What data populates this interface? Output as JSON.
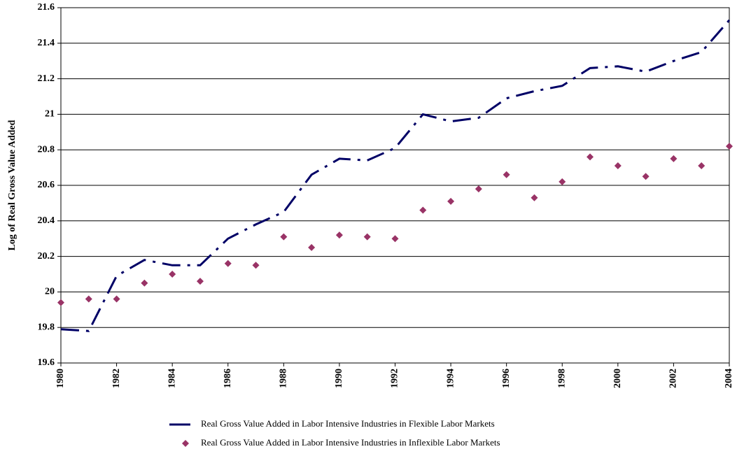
{
  "chart_data": {
    "type": "line",
    "y_label": "Log of Real Gross Value Added",
    "x": [
      1980,
      1981,
      1982,
      1983,
      1984,
      1985,
      1986,
      1987,
      1988,
      1989,
      1990,
      1991,
      1992,
      1993,
      1994,
      1995,
      1996,
      1997,
      1998,
      1999,
      2000,
      2001,
      2002,
      2003,
      2004
    ],
    "series": [
      {
        "name": "Real Gross Value Added in Labor Intensive Industries in Flexible Labor Markets",
        "color": "#000066",
        "mode": "line",
        "values": [
          19.79,
          19.78,
          20.09,
          20.18,
          20.15,
          20.15,
          20.3,
          20.38,
          20.45,
          20.66,
          20.75,
          20.74,
          20.81,
          21.0,
          20.96,
          20.98,
          21.09,
          21.13,
          21.16,
          21.26,
          21.27,
          21.24,
          21.3,
          21.35,
          21.53
        ]
      },
      {
        "name": "Real Gross Value Added in Labor Intensive Industries in Inflexible Labor Markets",
        "color": "#993366",
        "mode": "marker",
        "values": [
          19.94,
          19.96,
          19.96,
          20.05,
          20.1,
          20.06,
          20.16,
          20.15,
          20.31,
          20.25,
          20.32,
          20.31,
          20.3,
          20.46,
          20.51,
          20.58,
          20.66,
          20.53,
          20.62,
          20.76,
          20.71,
          20.65,
          20.75,
          20.71,
          20.82
        ]
      }
    ],
    "xlim": [
      1980,
      2004
    ],
    "xticks": [
      1980,
      1982,
      1984,
      1986,
      1988,
      1990,
      1992,
      1994,
      1996,
      1998,
      2000,
      2002,
      2004
    ],
    "ylim": [
      19.6,
      21.6
    ],
    "yticks": [
      19.6,
      19.8,
      20,
      20.2,
      20.4,
      20.6,
      20.8,
      21,
      21.2,
      21.4,
      21.6
    ],
    "grid": true
  }
}
